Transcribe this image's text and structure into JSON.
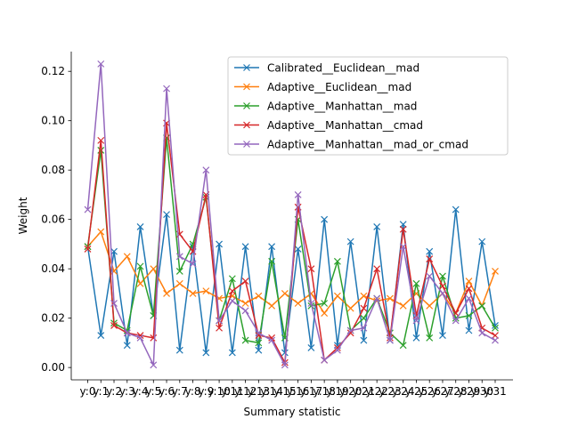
{
  "chart_data": {
    "type": "line",
    "xlabel": "Summary statistic",
    "ylabel": "Weight",
    "ylim": [
      -0.005,
      0.128
    ],
    "yticks": [
      0.0,
      0.02,
      0.04,
      0.06,
      0.08,
      0.1,
      0.12
    ],
    "ytick_labels": [
      "0.00",
      "0.02",
      "0.04",
      "0.06",
      "0.08",
      "0.10",
      "0.12"
    ],
    "x": [
      "y:0",
      "y:1",
      "y:2",
      "y:3",
      "y:4",
      "y:5",
      "y:6",
      "y:7",
      "y:8",
      "y:9",
      "y:10",
      "y:11",
      "y:12",
      "y:13",
      "y:14",
      "y:15",
      "y:16",
      "y:17",
      "y:18",
      "y:19",
      "y:20",
      "y:21",
      "y:22",
      "y:23",
      "y:24",
      "y:25",
      "y:26",
      "y:27",
      "y:28",
      "y:29",
      "y:30",
      "y:31"
    ],
    "marker": "x",
    "grid": false,
    "legend_position": "upper right",
    "series": [
      {
        "name": "Calibrated__Euclidean__mad",
        "color": "#1f77b4",
        "values": [
          0.049,
          0.013,
          0.047,
          0.009,
          0.057,
          0.021,
          0.062,
          0.007,
          0.049,
          0.006,
          0.05,
          0.006,
          0.049,
          0.007,
          0.049,
          0.006,
          0.048,
          0.008,
          0.06,
          0.009,
          0.051,
          0.011,
          0.057,
          0.011,
          0.058,
          0.012,
          0.047,
          0.013,
          0.064,
          0.015,
          0.051,
          0.017
        ]
      },
      {
        "name": "Adaptive__Euclidean__mad",
        "color": "#ff7f0e",
        "values": [
          0.049,
          0.055,
          0.039,
          0.045,
          0.034,
          0.04,
          0.03,
          0.034,
          0.03,
          0.031,
          0.028,
          0.029,
          0.026,
          0.029,
          0.025,
          0.03,
          0.026,
          0.03,
          0.022,
          0.029,
          0.024,
          0.029,
          0.027,
          0.028,
          0.025,
          0.03,
          0.025,
          0.03,
          0.022,
          0.035,
          0.025,
          0.039
        ]
      },
      {
        "name": "Adaptive__Manhattan__mad",
        "color": "#2ca02c",
        "values": [
          0.049,
          0.088,
          0.018,
          0.015,
          0.041,
          0.021,
          0.093,
          0.039,
          0.05,
          0.069,
          0.019,
          0.036,
          0.011,
          0.01,
          0.043,
          0.012,
          0.06,
          0.025,
          0.026,
          0.043,
          0.015,
          0.02,
          0.028,
          0.014,
          0.009,
          0.034,
          0.012,
          0.037,
          0.02,
          0.021,
          0.025,
          0.016
        ]
      },
      {
        "name": "Adaptive__Manhattan__cmad",
        "color": "#d62728",
        "values": [
          0.048,
          0.092,
          0.017,
          0.014,
          0.013,
          0.012,
          0.099,
          0.054,
          0.047,
          0.07,
          0.016,
          0.031,
          0.035,
          0.013,
          0.012,
          0.002,
          0.065,
          0.04,
          0.003,
          0.008,
          0.014,
          0.024,
          0.04,
          0.012,
          0.056,
          0.021,
          0.044,
          0.033,
          0.022,
          0.032,
          0.016,
          0.013
        ]
      },
      {
        "name": "Adaptive__Manhattan__mad_or_cmad",
        "color": "#9467bd",
        "values": [
          0.064,
          0.123,
          0.026,
          0.014,
          0.012,
          0.001,
          0.113,
          0.045,
          0.042,
          0.08,
          0.019,
          0.027,
          0.023,
          0.014,
          0.011,
          0.001,
          0.07,
          0.026,
          0.003,
          0.007,
          0.015,
          0.016,
          0.028,
          0.011,
          0.049,
          0.019,
          0.037,
          0.03,
          0.019,
          0.028,
          0.014,
          0.011
        ]
      }
    ]
  }
}
